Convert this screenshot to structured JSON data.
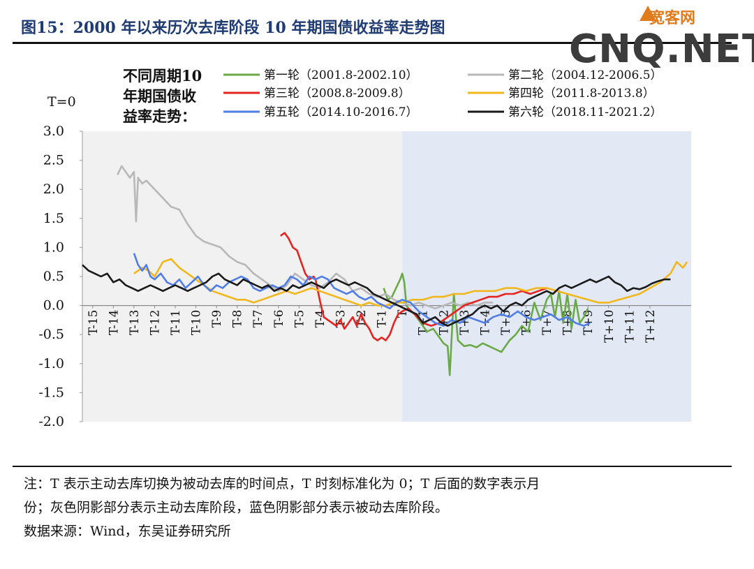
{
  "figure": {
    "title": "图15：2000 年以来历次去库阶段 10 年期国债收益率走势图"
  },
  "watermark": {
    "brand": "宽客网",
    "site": "CNQ.NET"
  },
  "notes": {
    "line1": "注：T 表示主动去库切换为被动去库的时间点，T 时刻标准化为 0；T 后面的数字表示月",
    "line2": "份；灰色阴影部分表示主动去库阶段，蓝色阴影部分表示被动去库阶段。",
    "line3": "数据来源：Wind，东吴证券研究所"
  },
  "chart_data": {
    "type": "line",
    "t_label": "T=0",
    "legend_title": [
      "不同周期10",
      "年期国债收",
      "益率走势："
    ],
    "ylim": [
      -2.0,
      3.0
    ],
    "yticks": [
      "3.0",
      "2.5",
      "2.0",
      "1.5",
      "1.0",
      "0.5",
      "0.0",
      "-0.5",
      "-1.0",
      "-1.5",
      "-2.0"
    ],
    "xlim": [
      -15.5,
      14.0
    ],
    "xtick_labels": [
      "T-15",
      "T-14",
      "T-13",
      "T-12",
      "T-11",
      "T-10",
      "T-9",
      "T-8",
      "T-7",
      "T-6",
      "T-5",
      "T-4",
      "T-3",
      "T-2",
      "T-1",
      "T",
      "T+1",
      "T+2",
      "T+3",
      "T+4",
      "T+5",
      "T+6",
      "T+7",
      "T+8",
      "T+9",
      "T+10",
      "T+11",
      "T+12"
    ],
    "shading": {
      "active_destocking": {
        "from": -15.5,
        "to": 0,
        "color": "#f1f1f1"
      },
      "passive_destocking": {
        "from": 0,
        "to": 14.0,
        "color": "#e3e9f4"
      }
    },
    "legend_position": "top",
    "series": [
      {
        "name": "第一轮（2001.8-2002.10）",
        "color": "#6aaa46",
        "x": [
          -0.9,
          -0.7,
          -0.5,
          -0.3,
          -0.1,
          0.0,
          0.1,
          0.2,
          0.4,
          0.6,
          0.8,
          1.0,
          1.2,
          1.5,
          1.8,
          2.0,
          2.2,
          2.3,
          2.5,
          2.7,
          3.0,
          3.3,
          3.6,
          3.9,
          4.2,
          4.5,
          4.8,
          5.2,
          5.5,
          5.8,
          6.1,
          6.4,
          6.7,
          7.0,
          7.2,
          7.4,
          7.6,
          7.8,
          8.0,
          8.2,
          8.4,
          8.6,
          8.8,
          9.0
        ],
        "y": [
          0.3,
          0.1,
          0.15,
          0.3,
          0.45,
          0.55,
          0.4,
          0.0,
          -0.1,
          -0.15,
          -0.25,
          -0.35,
          -0.45,
          -0.4,
          -0.55,
          -0.65,
          -0.7,
          -1.2,
          0.2,
          -0.6,
          -0.7,
          -0.68,
          -0.72,
          -0.65,
          -0.7,
          -0.75,
          -0.8,
          -0.6,
          -0.5,
          -0.35,
          -0.45,
          0.05,
          -0.25,
          0.1,
          0.2,
          -0.2,
          0.25,
          -0.3,
          0.2,
          -0.4,
          0.1,
          -0.3,
          -0.2,
          -0.05
        ]
      },
      {
        "name": "第二轮（2004.12-2006.5）",
        "color": "#b8b8b8",
        "x": [
          -13.8,
          -13.6,
          -13.4,
          -13.2,
          -13.0,
          -12.9,
          -12.8,
          -12.6,
          -12.4,
          -12.0,
          -11.6,
          -11.2,
          -10.8,
          -10.4,
          -10.0,
          -9.6,
          -9.2,
          -8.8,
          -8.4,
          -8.0,
          -7.6,
          -7.2,
          -6.8,
          -6.4,
          -6.0,
          -5.6,
          -5.2,
          -4.8,
          -4.4,
          -4.0,
          -3.6,
          -3.2,
          -2.8,
          -2.4,
          -2.0,
          -1.6,
          -1.2,
          -0.8,
          -0.4,
          0.0,
          0.4,
          0.8,
          1.2,
          1.6,
          2.0,
          2.4,
          2.8,
          3.2,
          3.6,
          4.0,
          4.4
        ],
        "y": [
          2.25,
          2.4,
          2.3,
          2.2,
          2.3,
          1.45,
          2.2,
          2.1,
          2.15,
          2.0,
          1.85,
          1.7,
          1.65,
          1.4,
          1.2,
          1.1,
          1.05,
          1.0,
          0.85,
          0.75,
          0.7,
          0.55,
          0.45,
          0.35,
          0.25,
          0.35,
          0.55,
          0.45,
          0.35,
          0.3,
          0.4,
          0.55,
          0.45,
          0.25,
          0.3,
          0.2,
          0.15,
          0.2,
          0.1,
          0.05,
          0.0,
          0.05,
          0.0,
          -0.05,
          0.0,
          0.05,
          0.0,
          0.05,
          0.0,
          0.05,
          0.05
        ]
      },
      {
        "name": "第三轮（2008.8-2009.8）",
        "color": "#e52420",
        "x": [
          -5.9,
          -5.7,
          -5.5,
          -5.3,
          -5.1,
          -4.9,
          -4.7,
          -4.5,
          -4.3,
          -4.2,
          -4.0,
          -3.8,
          -3.6,
          -3.4,
          -3.2,
          -3.0,
          -2.8,
          -2.6,
          -2.4,
          -2.2,
          -2.0,
          -1.8,
          -1.6,
          -1.4,
          -1.2,
          -1.0,
          -0.8,
          -0.6,
          -0.4,
          -0.2,
          0.0,
          0.3,
          0.6,
          1.0,
          1.4,
          1.8,
          2.2,
          2.6,
          3.0,
          3.4,
          3.8,
          4.2,
          4.6,
          5.0,
          5.4,
          5.8,
          6.2,
          6.6,
          7.0
        ],
        "y": [
          1.2,
          1.25,
          1.15,
          1.0,
          0.95,
          0.75,
          0.55,
          0.45,
          0.5,
          0.45,
          0.1,
          -0.2,
          -0.25,
          -0.3,
          -0.35,
          -0.25,
          -0.4,
          -0.3,
          -0.2,
          -0.35,
          -0.15,
          -0.3,
          -0.4,
          -0.55,
          -0.6,
          -0.55,
          -0.6,
          -0.5,
          -0.3,
          -0.15,
          -0.1,
          -0.05,
          -0.15,
          -0.3,
          -0.35,
          -0.3,
          -0.2,
          -0.1,
          0.0,
          0.05,
          0.1,
          0.15,
          0.15,
          0.2,
          0.2,
          0.25,
          0.2,
          0.25,
          0.3
        ]
      },
      {
        "name": "第四轮（2011.8-2013.8）",
        "color": "#f2b71d",
        "x": [
          -13.0,
          -12.6,
          -12.3,
          -12.0,
          -11.6,
          -11.2,
          -10.8,
          -10.4,
          -10.0,
          -9.6,
          -9.2,
          -8.8,
          -8.4,
          -8.0,
          -7.6,
          -7.2,
          -6.8,
          -6.4,
          -6.0,
          -5.6,
          -5.2,
          -4.8,
          -4.4,
          -4.0,
          -3.6,
          -3.2,
          -2.8,
          -2.4,
          -2.0,
          -1.6,
          -1.2,
          -0.8,
          -0.4,
          0.0,
          0.5,
          1.0,
          1.5,
          2.0,
          2.5,
          3.0,
          3.5,
          4.0,
          4.5,
          5.0,
          5.5,
          6.0,
          6.5,
          7.0,
          7.5,
          8.0,
          8.5,
          9.0,
          9.5,
          10.0,
          10.5,
          11.0,
          11.5,
          12.0,
          12.5,
          13.0,
          13.3,
          13.6,
          13.8
        ],
        "y": [
          0.55,
          0.65,
          0.6,
          0.5,
          0.75,
          0.8,
          0.65,
          0.55,
          0.45,
          0.35,
          0.25,
          0.2,
          0.15,
          0.1,
          0.1,
          0.05,
          0.1,
          0.15,
          0.2,
          0.25,
          0.2,
          0.25,
          0.3,
          0.25,
          0.2,
          0.15,
          0.1,
          0.05,
          0.0,
          0.05,
          0.0,
          0.0,
          0.05,
          0.05,
          0.1,
          0.1,
          0.15,
          0.15,
          0.2,
          0.2,
          0.25,
          0.25,
          0.25,
          0.3,
          0.3,
          0.25,
          0.3,
          0.3,
          0.25,
          0.2,
          0.15,
          0.1,
          0.05,
          0.05,
          0.1,
          0.15,
          0.2,
          0.3,
          0.4,
          0.55,
          0.75,
          0.65,
          0.75
        ]
      },
      {
        "name": "第五轮（2014.10-2016.7）",
        "color": "#4f7ee8",
        "x": [
          -13.0,
          -12.8,
          -12.6,
          -12.4,
          -12.2,
          -12.0,
          -11.7,
          -11.4,
          -11.1,
          -10.8,
          -10.5,
          -10.2,
          -9.9,
          -9.6,
          -9.3,
          -9.0,
          -8.7,
          -8.4,
          -8.1,
          -7.8,
          -7.5,
          -7.2,
          -6.9,
          -6.6,
          -6.3,
          -6.0,
          -5.7,
          -5.4,
          -5.1,
          -4.8,
          -4.5,
          -4.2,
          -3.9,
          -3.6,
          -3.3,
          -3.0,
          -2.7,
          -2.4,
          -2.1,
          -1.8,
          -1.5,
          -1.2,
          -0.9,
          -0.6,
          -0.3,
          0.0,
          0.4,
          0.8,
          1.2,
          1.6,
          2.0,
          2.4,
          2.8,
          3.2,
          3.6,
          4.0,
          4.4,
          4.8,
          5.2,
          5.6,
          6.0,
          6.4,
          6.8,
          7.2,
          7.6,
          8.0,
          8.4,
          8.8,
          9.1
        ],
        "y": [
          0.9,
          0.7,
          0.6,
          0.7,
          0.5,
          0.45,
          0.55,
          0.4,
          0.35,
          0.45,
          0.3,
          0.4,
          0.5,
          0.35,
          0.25,
          0.35,
          0.3,
          0.4,
          0.45,
          0.5,
          0.45,
          0.3,
          0.25,
          0.3,
          0.35,
          0.3,
          0.35,
          0.5,
          0.45,
          0.35,
          0.5,
          0.45,
          0.5,
          0.45,
          0.3,
          0.25,
          0.2,
          0.25,
          0.15,
          0.1,
          0.15,
          0.05,
          0.0,
          -0.05,
          0.05,
          0.1,
          0.05,
          -0.1,
          -0.2,
          -0.3,
          -0.35,
          -0.25,
          -0.3,
          -0.2,
          -0.25,
          -0.3,
          -0.2,
          -0.15,
          -0.2,
          -0.1,
          -0.2,
          -0.25,
          -0.2,
          -0.15,
          -0.25,
          -0.2,
          -0.3,
          -0.35,
          -0.3
        ]
      },
      {
        "name": "第六轮（2018.11-2021.2）",
        "color": "#1a1a1a",
        "x": [
          -15.5,
          -15.2,
          -14.9,
          -14.6,
          -14.3,
          -14.0,
          -13.7,
          -13.4,
          -13.1,
          -12.8,
          -12.5,
          -12.2,
          -11.9,
          -11.6,
          -11.3,
          -11.0,
          -10.7,
          -10.4,
          -10.1,
          -9.8,
          -9.5,
          -9.2,
          -8.9,
          -8.6,
          -8.3,
          -8.0,
          -7.7,
          -7.4,
          -7.1,
          -6.8,
          -6.5,
          -6.2,
          -5.9,
          -5.6,
          -5.3,
          -5.0,
          -4.7,
          -4.4,
          -4.1,
          -3.8,
          -3.5,
          -3.2,
          -2.9,
          -2.6,
          -2.3,
          -2.0,
          -1.7,
          -1.4,
          -1.1,
          -0.8,
          -0.5,
          -0.2,
          0.1,
          0.4,
          0.7,
          1.0,
          1.3,
          1.6,
          1.9,
          2.2,
          2.5,
          2.8,
          3.1,
          3.4,
          3.7,
          4.0,
          4.3,
          4.6,
          4.9,
          5.2,
          5.5,
          5.8,
          6.1,
          6.4,
          6.7,
          7.0,
          7.3,
          7.6,
          7.9,
          8.2,
          8.5,
          8.8,
          9.1,
          9.4,
          9.7,
          10.0,
          10.3,
          10.6,
          10.9,
          11.2,
          11.5,
          11.8,
          12.1,
          12.4,
          12.7,
          13.0
        ],
        "y": [
          0.7,
          0.6,
          0.55,
          0.5,
          0.55,
          0.4,
          0.45,
          0.35,
          0.3,
          0.25,
          0.3,
          0.35,
          0.3,
          0.25,
          0.3,
          0.35,
          0.3,
          0.25,
          0.3,
          0.35,
          0.4,
          0.5,
          0.55,
          0.45,
          0.4,
          0.35,
          0.45,
          0.4,
          0.35,
          0.3,
          0.35,
          0.25,
          0.3,
          0.25,
          0.35,
          0.3,
          0.35,
          0.4,
          0.35,
          0.3,
          0.4,
          0.45,
          0.4,
          0.35,
          0.4,
          0.35,
          0.3,
          0.2,
          0.15,
          0.1,
          0.05,
          0.0,
          -0.05,
          -0.1,
          -0.15,
          -0.3,
          -0.25,
          -0.2,
          -0.3,
          -0.35,
          -0.3,
          -0.25,
          -0.2,
          -0.15,
          -0.05,
          0.0,
          -0.05,
          0.0,
          -0.1,
          0.0,
          0.05,
          0.0,
          0.1,
          0.15,
          0.2,
          0.25,
          0.2,
          0.3,
          0.35,
          0.3,
          0.35,
          0.4,
          0.45,
          0.4,
          0.45,
          0.5,
          0.4,
          0.35,
          0.25,
          0.3,
          0.28,
          0.32,
          0.38,
          0.42,
          0.45,
          0.45
        ]
      }
    ]
  }
}
